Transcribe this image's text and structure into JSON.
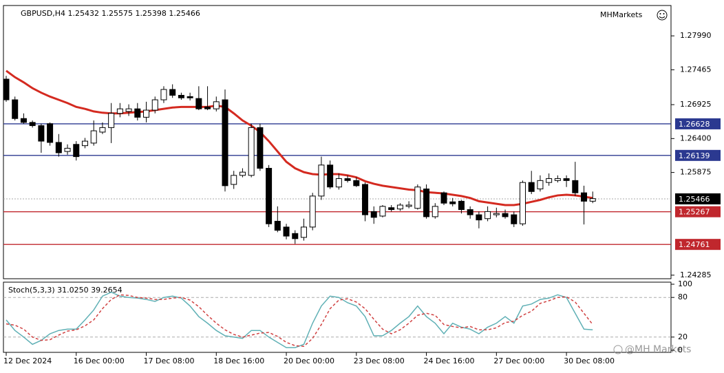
{
  "brand": "MHMarkets",
  "watermark": "@MH Markets",
  "chart_data": [
    {
      "type": "candlestick",
      "title": "GBPUSD,H4  1.25432 1.25575 1.25398 1.25466",
      "categories": [
        "12 Dec 2024",
        null,
        null,
        null,
        null,
        null,
        null,
        null,
        "16 Dec 00:00",
        null,
        null,
        null,
        null,
        null,
        null,
        null,
        "17 Dec 08:00",
        null,
        null,
        null,
        null,
        null,
        null,
        null,
        "18 Dec 16:00",
        null,
        null,
        null,
        null,
        null,
        null,
        null,
        "20 Dec 00:00",
        null,
        null,
        null,
        null,
        null,
        null,
        null,
        "23 Dec 08:00",
        null,
        null,
        null,
        null,
        null,
        null,
        null,
        "24 Dec 16:00",
        null,
        null,
        null,
        null,
        null,
        null,
        null,
        "27 Dec 00:00",
        null,
        null,
        null,
        null,
        null,
        null,
        null,
        "30 Dec 08:00",
        null,
        null,
        null
      ],
      "open": [
        1.2732,
        1.27,
        1.2671,
        1.2665,
        1.266,
        1.2663,
        1.2634,
        1.262,
        1.2631,
        1.2629,
        1.2633,
        1.265,
        1.2657,
        1.2679,
        1.2682,
        1.2686,
        1.2673,
        1.2684,
        1.27,
        1.2716,
        1.2707,
        1.2705,
        1.2702,
        1.2689,
        1.2686,
        1.27,
        1.2569,
        1.2583,
        1.2583,
        1.2657,
        1.2594,
        1.2512,
        1.2503,
        1.2493,
        1.2487,
        1.2503,
        1.2551,
        1.2599,
        1.2565,
        1.2578,
        1.2575,
        1.2569,
        1.2527,
        1.252,
        1.2533,
        1.2531,
        1.2535,
        1.2532,
        1.2562,
        1.2519,
        1.2556,
        1.2542,
        1.2543,
        1.253,
        1.2522,
        1.2516,
        1.2522,
        1.2524,
        1.2522,
        1.2508,
        1.2572,
        1.2562,
        1.2572,
        1.2575,
        1.2578,
        1.2575,
        1.2556,
        1.2543
      ],
      "high": [
        1.2737,
        1.2705,
        1.2679,
        1.2668,
        1.2663,
        1.2665,
        1.2647,
        1.2631,
        1.2636,
        1.2641,
        1.2668,
        1.2665,
        1.2695,
        1.2695,
        1.2693,
        1.2695,
        1.2697,
        1.2705,
        1.2721,
        1.2724,
        1.2711,
        1.2711,
        1.2721,
        1.2721,
        1.2705,
        1.2716,
        1.259,
        1.2594,
        1.2663,
        1.2663,
        1.2599,
        1.2535,
        1.2508,
        1.2498,
        1.2516,
        1.2556,
        1.2612,
        1.2606,
        1.2586,
        1.2583,
        1.258,
        1.2572,
        1.2535,
        1.2537,
        1.2537,
        1.254,
        1.2543,
        1.2569,
        1.2569,
        1.254,
        1.2558,
        1.2548,
        1.2545,
        1.2535,
        1.2527,
        1.2535,
        1.2533,
        1.253,
        1.2527,
        1.2575,
        1.259,
        1.2583,
        1.2586,
        1.2583,
        1.2583,
        1.2604,
        1.2567,
        1.2558
      ],
      "low": [
        1.2697,
        1.2668,
        1.2663,
        1.2657,
        1.2618,
        1.2629,
        1.2612,
        1.2615,
        1.2606,
        1.2625,
        1.2629,
        1.2647,
        1.2633,
        1.2673,
        1.2675,
        1.2668,
        1.2665,
        1.2679,
        1.2695,
        1.2703,
        1.27,
        1.2699,
        1.2684,
        1.2684,
        1.2682,
        1.2558,
        1.2562,
        1.258,
        1.258,
        1.259,
        1.2503,
        1.2495,
        1.2484,
        1.2477,
        1.2482,
        1.2498,
        1.2545,
        1.2562,
        1.2561,
        1.2572,
        1.2565,
        1.2512,
        1.2508,
        1.2518,
        1.2527,
        1.2528,
        1.2532,
        1.253,
        1.2516,
        1.2516,
        1.2537,
        1.2535,
        1.2524,
        1.2516,
        1.2501,
        1.2512,
        1.2518,
        1.2516,
        1.2503,
        1.2505,
        1.2554,
        1.2558,
        1.2567,
        1.2572,
        1.2565,
        1.2551,
        1.2507,
        1.254
      ],
      "close": [
        1.27,
        1.2671,
        1.2665,
        1.266,
        1.2636,
        1.2634,
        1.2618,
        1.2625,
        1.2612,
        1.2636,
        1.2652,
        1.2657,
        1.2679,
        1.2686,
        1.2686,
        1.2673,
        1.2684,
        1.27,
        1.2716,
        1.2707,
        1.2703,
        1.2703,
        1.2686,
        1.2686,
        1.2697,
        1.2567,
        1.2583,
        1.2588,
        1.2657,
        1.2594,
        1.2508,
        1.2498,
        1.2489,
        1.2485,
        1.2503,
        1.2551,
        1.2599,
        1.2565,
        1.2578,
        1.2575,
        1.2567,
        1.2522,
        1.2518,
        1.2535,
        1.253,
        1.2537,
        1.2537,
        1.2565,
        1.2519,
        1.2535,
        1.254,
        1.2539,
        1.253,
        1.2522,
        1.2514,
        1.2527,
        1.2524,
        1.2519,
        1.2508,
        1.2572,
        1.2558,
        1.2575,
        1.2578,
        1.2578,
        1.2575,
        1.2556,
        1.2543,
        1.2547
      ],
      "up_color": "#ffffff",
      "down_color": "#000000",
      "series": [
        {
          "color": "#d42a20",
          "values": [
            1.2745,
            1.2735,
            1.2727,
            1.2718,
            1.2711,
            1.2705,
            1.27,
            1.2695,
            1.2689,
            1.2686,
            1.2682,
            1.268,
            1.2679,
            1.2679,
            1.268,
            1.2681,
            1.2682,
            1.2684,
            1.2686,
            1.2688,
            1.2689,
            1.2689,
            1.2689,
            1.2689,
            1.2691,
            1.2689,
            1.2679,
            1.2668,
            1.266,
            1.265,
            1.2636,
            1.262,
            1.2604,
            1.2594,
            1.2588,
            1.2585,
            1.2584,
            1.2585,
            1.2585,
            1.2583,
            1.258,
            1.2574,
            1.257,
            1.2567,
            1.2565,
            1.2563,
            1.2561,
            1.256,
            1.2557,
            1.2556,
            1.2555,
            1.2553,
            1.2551,
            1.2548,
            1.2543,
            1.2541,
            1.2539,
            1.2537,
            1.2537,
            1.2539,
            1.2542,
            1.2545,
            1.2549,
            1.2552,
            1.2553,
            1.2552,
            1.255,
            1.2548
          ]
        }
      ],
      "levels": [
        {
          "value": 1.26628,
          "color": "#2b3990"
        },
        {
          "value": 1.26139,
          "color": "#2b3990"
        },
        {
          "value": 1.25267,
          "color": "#c0272d"
        },
        {
          "value": 1.24761,
          "color": "#c0272d"
        }
      ],
      "last_price": {
        "value": 1.25466,
        "color": "#000000"
      },
      "ylim": [
        1.2423,
        1.2846
      ],
      "yticks": [
        {
          "value": 1.2799,
          "label": "1.27990"
        },
        1.27465,
        1.26925,
        {
          "value": 1.264,
          "label": "1.26400"
        },
        1.25875,
        1.24285
      ]
    },
    {
      "type": "line",
      "title": "Stoch(5,3,3) 31.0250 39.2654",
      "series": [
        {
          "color": "#5fb0b5",
          "values": [
            46,
            30,
            20,
            9,
            15,
            25,
            30,
            32,
            32,
            46,
            61,
            82,
            88,
            82,
            80,
            79,
            77,
            74,
            80,
            82,
            79,
            67,
            51,
            41,
            30,
            22,
            20,
            18,
            30,
            30,
            20,
            12,
            4,
            4,
            9,
            41,
            67,
            82,
            80,
            72,
            67,
            51,
            22,
            22,
            30,
            41,
            51,
            67,
            51,
            41,
            25,
            41,
            35,
            32,
            25,
            35,
            41,
            51,
            41,
            67,
            70,
            77,
            79,
            84,
            80,
            56,
            32,
            31
          ]
        },
        {
          "color": "#d04040",
          "dashed": true,
          "values": [
            40,
            38,
            32,
            20,
            15,
            16,
            23,
            29,
            31,
            37,
            46,
            63,
            77,
            84,
            83,
            80,
            79,
            77,
            77,
            79,
            80,
            76,
            66,
            53,
            41,
            31,
            24,
            20,
            23,
            26,
            27,
            21,
            12,
            7,
            6,
            18,
            39,
            63,
            76,
            78,
            73,
            63,
            47,
            32,
            25,
            31,
            41,
            53,
            56,
            53,
            39,
            36,
            34,
            36,
            31,
            31,
            34,
            42,
            44,
            53,
            59,
            71,
            75,
            80,
            81,
            73,
            56,
            39
          ]
        }
      ],
      "levels": [
        20,
        80
      ],
      "ylim": [
        0,
        100
      ],
      "yticks": [
        0,
        20,
        80,
        100
      ]
    }
  ]
}
